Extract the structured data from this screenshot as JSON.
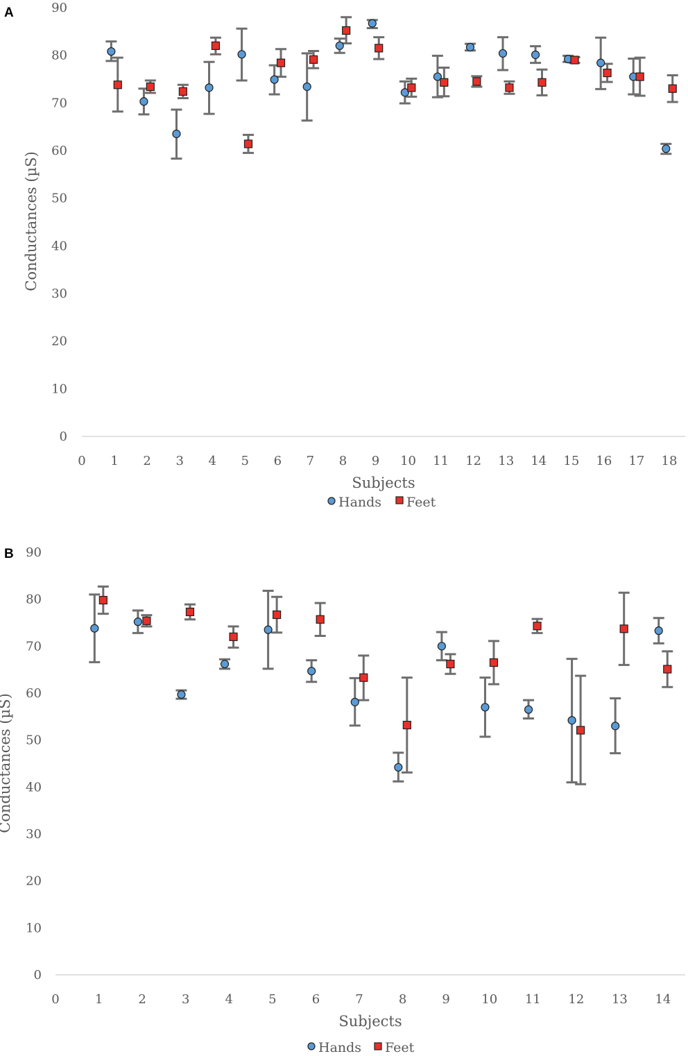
{
  "colors": {
    "hands": "#5b9bd5",
    "feet": "#e8302a",
    "errorbar": "#6e6e6e",
    "axis": "#d9d9d9",
    "text": "#595959"
  },
  "chart_data": [
    {
      "type": "scatter",
      "panel_label": "A",
      "xlabel": "Subjects",
      "ylabel": "Conductances (µS)",
      "xlim": [
        0,
        18
      ],
      "ylim": [
        0,
        90
      ],
      "xticks": [
        "0",
        "1",
        "2",
        "3",
        "4",
        "5",
        "6",
        "7",
        "8",
        "9",
        "10",
        "11",
        "12",
        "13",
        "14",
        "15",
        "16",
        "17",
        "18"
      ],
      "yticks": [
        "0",
        "10",
        "20",
        "30",
        "40",
        "50",
        "60",
        "70",
        "80",
        "90"
      ],
      "grid": false,
      "legend_position": "bottom",
      "series": [
        {
          "name": "Hands",
          "marker": "circle",
          "x": [
            0.9,
            1.9,
            2.9,
            3.9,
            4.9,
            5.9,
            6.9,
            7.9,
            8.9,
            9.9,
            10.9,
            11.9,
            12.9,
            13.9,
            14.9,
            15.9,
            16.9,
            17.9
          ],
          "y": [
            80.8,
            70.3,
            63.5,
            73.2,
            80.2,
            74.9,
            73.4,
            82.0,
            86.7,
            72.2,
            75.5,
            81.7,
            80.4,
            80.1,
            79.2,
            78.4,
            75.5,
            60.4
          ],
          "err_low": [
            78.8,
            67.6,
            58.3,
            67.7,
            74.7,
            71.8,
            66.3,
            80.5,
            85.7,
            69.9,
            71.2,
            81.0,
            76.9,
            78.4,
            78.6,
            72.9,
            71.8,
            59.3
          ],
          "err_high": [
            82.9,
            73.0,
            68.6,
            78.6,
            85.6,
            77.9,
            80.4,
            83.5,
            87.4,
            74.5,
            79.9,
            82.4,
            83.8,
            81.9,
            79.9,
            83.7,
            79.3,
            61.4
          ]
        },
        {
          "name": "Feet",
          "marker": "square",
          "x": [
            1.1,
            2.1,
            3.1,
            4.1,
            5.1,
            6.1,
            7.1,
            8.1,
            9.1,
            10.1,
            11.1,
            12.1,
            13.1,
            14.1,
            15.1,
            16.1,
            17.1,
            18.1
          ],
          "y": [
            73.8,
            73.4,
            72.4,
            82.0,
            61.4,
            78.4,
            79.1,
            85.2,
            81.5,
            73.2,
            74.3,
            74.5,
            73.2,
            74.3,
            79.0,
            76.3,
            75.5,
            73.0
          ],
          "err_low": [
            68.2,
            72.1,
            71.0,
            80.2,
            59.5,
            75.5,
            77.3,
            82.5,
            79.2,
            71.3,
            71.4,
            73.4,
            71.9,
            71.6,
            78.4,
            74.4,
            71.5,
            70.2
          ],
          "err_high": [
            79.5,
            74.7,
            73.8,
            83.7,
            63.3,
            81.3,
            80.9,
            88.0,
            83.8,
            75.1,
            77.4,
            75.6,
            74.5,
            77.0,
            79.6,
            78.2,
            79.5,
            75.8
          ]
        }
      ]
    },
    {
      "type": "scatter",
      "panel_label": "B",
      "xlabel": "Subjects",
      "ylabel": "Conductances (µS)",
      "xlim": [
        0,
        14
      ],
      "ylim": [
        0,
        90
      ],
      "xticks": [
        "0",
        "1",
        "2",
        "3",
        "4",
        "5",
        "6",
        "7",
        "8",
        "9",
        "10",
        "11",
        "12",
        "13",
        "14"
      ],
      "yticks": [
        "0",
        "10",
        "20",
        "30",
        "40",
        "50",
        "60",
        "70",
        "80",
        "90"
      ],
      "grid": false,
      "legend_position": "bottom",
      "series": [
        {
          "name": "Hands",
          "marker": "circle",
          "x": [
            0.9,
            1.9,
            2.9,
            3.9,
            4.9,
            5.9,
            6.9,
            7.9,
            8.9,
            9.9,
            10.9,
            11.9,
            12.9,
            13.9
          ],
          "y": [
            73.8,
            75.2,
            59.7,
            66.2,
            73.5,
            64.7,
            58.1,
            44.2,
            70.0,
            57.0,
            56.5,
            54.2,
            53.0,
            73.3
          ],
          "err_low": [
            66.6,
            72.8,
            58.8,
            65.2,
            65.2,
            62.4,
            53.1,
            41.2,
            67.0,
            50.7,
            54.6,
            41.0,
            47.2,
            70.6
          ],
          "err_high": [
            81.0,
            77.6,
            60.6,
            67.2,
            81.8,
            67.0,
            63.2,
            47.3,
            73.0,
            63.3,
            58.5,
            67.3,
            58.9,
            76.0
          ]
        },
        {
          "name": "Feet",
          "marker": "square",
          "x": [
            1.1,
            2.1,
            3.1,
            4.1,
            5.1,
            6.1,
            7.1,
            8.1,
            9.1,
            10.1,
            11.1,
            12.1,
            13.1,
            14.1
          ],
          "y": [
            79.8,
            75.4,
            77.3,
            72.0,
            76.7,
            75.7,
            63.3,
            53.2,
            66.2,
            66.5,
            74.3,
            52.1,
            73.7,
            65.1
          ],
          "err_low": [
            76.9,
            74.2,
            75.7,
            69.7,
            72.9,
            72.2,
            58.5,
            43.1,
            64.1,
            61.9,
            72.8,
            40.6,
            66.0,
            61.3
          ],
          "err_high": [
            82.7,
            76.6,
            78.9,
            74.2,
            80.5,
            79.2,
            68.0,
            63.3,
            68.3,
            71.1,
            75.8,
            63.7,
            81.4,
            68.9
          ]
        }
      ]
    }
  ]
}
